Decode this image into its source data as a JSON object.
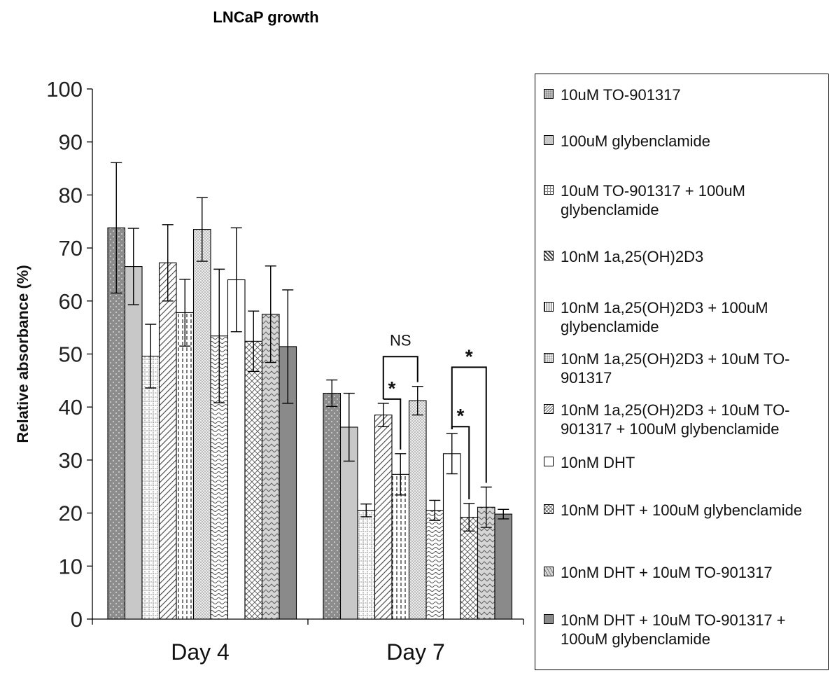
{
  "chart_data": {
    "type": "bar",
    "title": "LNCaP growth",
    "ylabel": "Relative absorbance (%)",
    "xlabel": "",
    "ylim": [
      0,
      100
    ],
    "yticks": [
      0,
      10,
      20,
      30,
      40,
      50,
      60,
      70,
      80,
      90,
      100
    ],
    "categories": [
      "Day 4",
      "Day 7"
    ],
    "legend_position": "right",
    "grid": false,
    "series": [
      {
        "name": "10uM TO-901317",
        "values": [
          73.8,
          42.6
        ],
        "errors": [
          12.3,
          2.5
        ],
        "fill": "#8c8c8c",
        "pattern": "dots"
      },
      {
        "name": "100uM glybenclamide",
        "values": [
          66.5,
          36.2
        ],
        "errors": [
          7.2,
          6.4
        ],
        "fill": "#c8c8c8",
        "pattern": "solid"
      },
      {
        "name": "10uM TO-901317 + 100uM glybenclamide",
        "values": [
          49.6,
          20.5
        ],
        "errors": [
          6.0,
          1.2
        ],
        "fill": "#ffffff",
        "pattern": "grid"
      },
      {
        "name": "10nM 1a,25(OH)2D3",
        "values": [
          67.2,
          38.5
        ],
        "errors": [
          7.2,
          2.2
        ],
        "fill": "#ffffff",
        "pattern": "diag"
      },
      {
        "name": "10nM 1a,25(OH)2D3 + 100uM glybenclamide",
        "values": [
          57.8,
          27.3
        ],
        "errors": [
          6.3,
          3.9
        ],
        "fill": "#ffffff",
        "pattern": "vdash"
      },
      {
        "name": "10nM 1a,25(OH)2D3 + 10uM TO-901317",
        "values": [
          73.5,
          41.2
        ],
        "errors": [
          6.0,
          2.7
        ],
        "fill": "#ececec",
        "pattern": "fine-dots"
      },
      {
        "name": "10nM 1a,25(OH)2D3 + 10uM TO-901317 + 100uM glybenclamide",
        "values": [
          53.4,
          20.5
        ],
        "errors": [
          12.6,
          1.9
        ],
        "fill": "#ffffff",
        "pattern": "waves"
      },
      {
        "name": "10nM DHT",
        "values": [
          64.0,
          31.2
        ],
        "errors": [
          9.8,
          3.8
        ],
        "fill": "#ffffff",
        "pattern": "none"
      },
      {
        "name": "10nM DHT + 100uM glybenclamide",
        "values": [
          52.4,
          19.2
        ],
        "errors": [
          5.7,
          2.6
        ],
        "fill": "#ffffff",
        "pattern": "cross"
      },
      {
        "name": "10nM DHT + 10uM TO-901317",
        "values": [
          57.5,
          21.1
        ],
        "errors": [
          9.1,
          3.8
        ],
        "fill": "#d6d6d6",
        "pattern": "zigzag"
      },
      {
        "name": "10nM DHT + 10uM TO-901317 + 100uM glybenclamide",
        "values": [
          51.4,
          19.8
        ],
        "errors": [
          10.7,
          0.9
        ],
        "fill": "#8a8a8a",
        "pattern": "solid"
      }
    ],
    "annotations": [
      {
        "text": "NS",
        "category": 1,
        "from": 3,
        "to": 5,
        "at": 49.5
      },
      {
        "text": "*",
        "category": 1,
        "from": 3,
        "to": 4,
        "at": 41.5
      },
      {
        "text": "*",
        "category": 1,
        "from": 7,
        "to": 9,
        "at": 47.5
      },
      {
        "text": "*",
        "category": 1,
        "from": 7,
        "to": 8,
        "at": 36.3
      }
    ]
  },
  "legend": {
    "items": [
      "10uM TO-901317",
      "100uM glybenclamide",
      "10uM TO-901317 + 100uM glybenclamide",
      "10nM 1a,25(OH)2D3",
      "10nM 1a,25(OH)2D3 + 100uM glybenclamide",
      "10nM 1a,25(OH)2D3 + 10uM TO-901317",
      "10nM 1a,25(OH)2D3 + 10uM TO-901317 + 100uM glybenclamide",
      "10nM DHT",
      "10nM DHT + 100uM glybenclamide",
      "10nM DHT + 10uM TO-901317",
      "10nM DHT + 10uM TO-901317 + 100uM glybenclamide"
    ]
  }
}
